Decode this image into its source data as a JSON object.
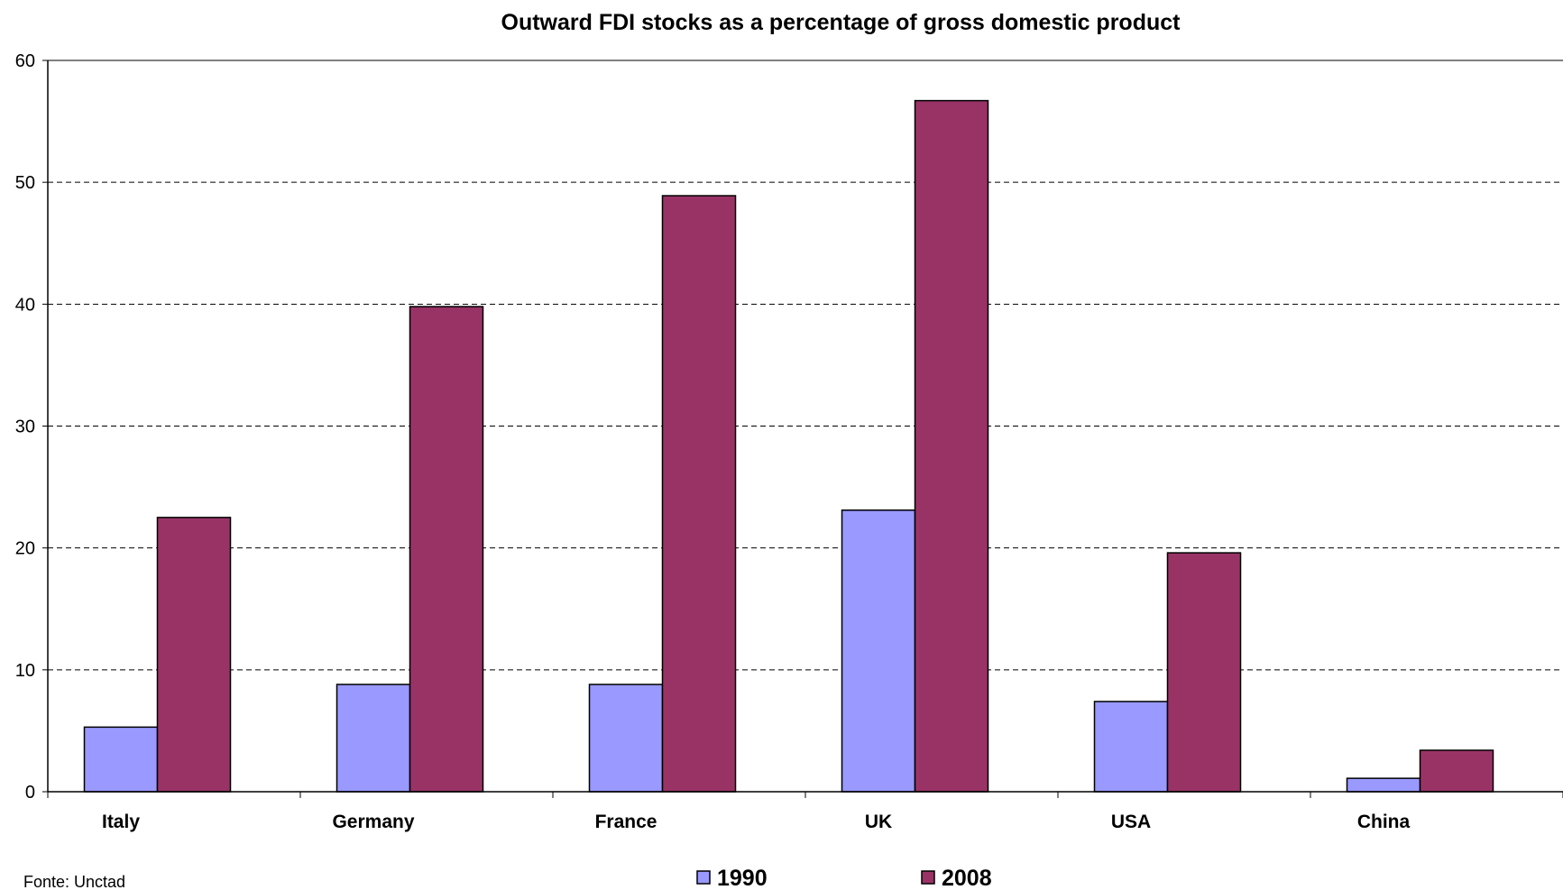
{
  "chart_data": {
    "type": "bar",
    "title": "Outward FDI stocks as a percentage of gross domestic product",
    "xlabel": "",
    "ylabel": "",
    "ylim": [
      0,
      60
    ],
    "yticks": [
      "0",
      "10",
      "20",
      "30",
      "40",
      "50",
      "60"
    ],
    "grid": true,
    "legend_position": "bottom",
    "categories": [
      "Italy",
      "Germany",
      "France",
      "UK",
      "USA",
      "China"
    ],
    "series": [
      {
        "name": "1990",
        "color": "#9999ff",
        "values": [
          5.3,
          8.8,
          8.8,
          23.1,
          7.4,
          1.1
        ]
      },
      {
        "name": "2008",
        "color": "#993366",
        "values": [
          22.5,
          39.8,
          48.9,
          56.7,
          19.6,
          3.4
        ]
      }
    ],
    "source_note": "Fonte: Unctad"
  }
}
